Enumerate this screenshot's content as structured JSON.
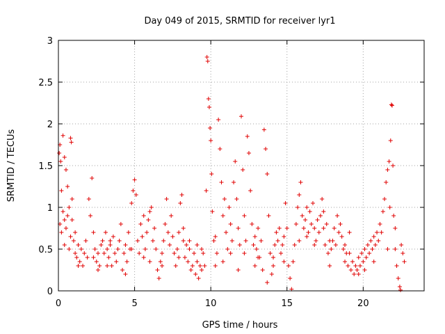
{
  "chart_data": {
    "type": "scatter",
    "title": "Day 049 of 2015, SRMTID for receiver lyr1",
    "xlabel": "GPS time / hours",
    "ylabel": "SRMTID / TECUs",
    "xlim": [
      0,
      24
    ],
    "ylim": [
      0,
      3
    ],
    "xticks": [
      "0",
      "5",
      "10",
      "15",
      "20"
    ],
    "yticks": [
      "0",
      "0.5",
      "1",
      "1.5",
      "2",
      "2.5",
      "3"
    ],
    "grid": true,
    "marker": "plus",
    "color": "#e00000",
    "series": [
      {
        "name": "SRMTID lyr1",
        "points": [
          [
            0.05,
            1.65
          ],
          [
            0.1,
            1.75
          ],
          [
            0.15,
            1.55
          ],
          [
            0.2,
            1.2
          ],
          [
            0.3,
            1.86
          ],
          [
            0.4,
            1.6
          ],
          [
            0.5,
            1.45
          ],
          [
            0.6,
            1.25
          ],
          [
            0.8,
            1.83
          ],
          [
            0.85,
            1.78
          ],
          [
            0.9,
            1.1
          ],
          [
            0.1,
            0.8
          ],
          [
            0.2,
            0.7
          ],
          [
            0.3,
            0.95
          ],
          [
            0.4,
            0.55
          ],
          [
            0.5,
            0.75
          ],
          [
            0.6,
            0.9
          ],
          [
            0.7,
            1.0
          ],
          [
            0.8,
            0.65
          ],
          [
            0.9,
            0.85
          ],
          [
            1.0,
            0.6
          ],
          [
            1.1,
            0.45
          ],
          [
            1.2,
            0.4
          ],
          [
            1.3,
            0.55
          ],
          [
            1.4,
            0.35
          ],
          [
            1.5,
            0.5
          ],
          [
            1.6,
            0.3
          ],
          [
            1.7,
            0.45
          ],
          [
            1.8,
            0.6
          ],
          [
            1.9,
            0.4
          ],
          [
            2.0,
            1.1
          ],
          [
            2.1,
            0.9
          ],
          [
            2.2,
            1.35
          ],
          [
            2.3,
            0.7
          ],
          [
            2.4,
            0.5
          ],
          [
            2.5,
            0.35
          ],
          [
            2.6,
            0.45
          ],
          [
            2.7,
            0.3
          ],
          [
            2.8,
            0.55
          ],
          [
            2.9,
            0.6
          ],
          [
            3.0,
            0.45
          ],
          [
            3.1,
            0.7
          ],
          [
            3.2,
            0.5
          ],
          [
            3.3,
            0.4
          ],
          [
            3.4,
            0.55
          ],
          [
            3.5,
            0.3
          ],
          [
            3.6,
            0.65
          ],
          [
            3.7,
            0.45
          ],
          [
            3.8,
            0.35
          ],
          [
            3.9,
            0.5
          ],
          [
            4.0,
            0.6
          ],
          [
            4.1,
            0.8
          ],
          [
            4.2,
            0.25
          ],
          [
            4.3,
            0.45
          ],
          [
            4.4,
            0.55
          ],
          [
            4.5,
            0.35
          ],
          [
            4.6,
            0.7
          ],
          [
            4.7,
            0.5
          ],
          [
            4.8,
            1.05
          ],
          [
            4.9,
            1.2
          ],
          [
            5.0,
            1.33
          ],
          [
            5.1,
            1.15
          ],
          [
            5.2,
            0.6
          ],
          [
            5.3,
            0.45
          ],
          [
            5.4,
            0.8
          ],
          [
            5.5,
            0.65
          ],
          [
            5.6,
            0.9
          ],
          [
            5.7,
            0.5
          ],
          [
            5.8,
            0.7
          ],
          [
            5.9,
            0.85
          ],
          [
            6.0,
            0.95
          ],
          [
            6.1,
            1.0
          ],
          [
            6.2,
            0.6
          ],
          [
            6.3,
            0.75
          ],
          [
            6.4,
            0.5
          ],
          [
            6.5,
            0.25
          ],
          [
            6.6,
            0.15
          ],
          [
            6.7,
            0.35
          ],
          [
            6.8,
            0.45
          ],
          [
            6.9,
            0.6
          ],
          [
            7.0,
            0.8
          ],
          [
            7.1,
            1.1
          ],
          [
            7.2,
            0.7
          ],
          [
            7.3,
            0.55
          ],
          [
            7.4,
            0.9
          ],
          [
            7.5,
            0.65
          ],
          [
            7.6,
            0.45
          ],
          [
            7.7,
            0.3
          ],
          [
            7.8,
            0.5
          ],
          [
            7.9,
            0.7
          ],
          [
            8.0,
            1.05
          ],
          [
            8.1,
            1.15
          ],
          [
            8.2,
            0.6
          ],
          [
            8.3,
            0.4
          ],
          [
            8.4,
            0.55
          ],
          [
            8.5,
            0.35
          ],
          [
            8.6,
            0.5
          ],
          [
            8.7,
            0.25
          ],
          [
            8.8,
            0.3
          ],
          [
            8.9,
            0.45
          ],
          [
            9.0,
            0.2
          ],
          [
            9.1,
            0.35
          ],
          [
            9.2,
            0.15
          ],
          [
            9.3,
            0.3
          ],
          [
            9.4,
            0.5
          ],
          [
            9.5,
            0.45
          ],
          [
            9.6,
            0.3
          ],
          [
            9.7,
            1.2
          ],
          [
            9.75,
            2.8
          ],
          [
            9.8,
            2.75
          ],
          [
            9.85,
            2.3
          ],
          [
            9.9,
            2.2
          ],
          [
            9.95,
            1.95
          ],
          [
            10.0,
            1.8
          ],
          [
            10.05,
            1.4
          ],
          [
            10.1,
            0.95
          ],
          [
            10.2,
            0.6
          ],
          [
            10.3,
            0.3
          ],
          [
            10.4,
            0.45
          ],
          [
            10.5,
            2.05
          ],
          [
            10.6,
            1.7
          ],
          [
            10.7,
            1.3
          ],
          [
            10.8,
            0.9
          ],
          [
            10.9,
            1.1
          ],
          [
            11.0,
            0.7
          ],
          [
            11.1,
            0.5
          ],
          [
            11.2,
            1.0
          ],
          [
            11.3,
            0.8
          ],
          [
            11.4,
            0.6
          ],
          [
            11.5,
            1.3
          ],
          [
            11.6,
            1.55
          ],
          [
            11.7,
            1.1
          ],
          [
            11.8,
            0.75
          ],
          [
            11.9,
            0.55
          ],
          [
            12.0,
            2.09
          ],
          [
            12.1,
            1.45
          ],
          [
            12.2,
            0.9
          ],
          [
            12.3,
            0.6
          ],
          [
            12.4,
            1.85
          ],
          [
            12.5,
            1.65
          ],
          [
            12.6,
            1.2
          ],
          [
            12.7,
            0.8
          ],
          [
            12.8,
            0.55
          ],
          [
            12.9,
            0.65
          ],
          [
            13.0,
            0.5
          ],
          [
            13.1,
            0.75
          ],
          [
            13.2,
            0.4
          ],
          [
            13.3,
            0.6
          ],
          [
            13.4,
            0.25
          ],
          [
            13.5,
            1.93
          ],
          [
            13.6,
            1.7
          ],
          [
            13.7,
            1.4
          ],
          [
            13.8,
            0.9
          ],
          [
            13.9,
            0.45
          ],
          [
            14.0,
            0.2
          ],
          [
            14.1,
            0.4
          ],
          [
            14.2,
            0.55
          ],
          [
            14.3,
            0.7
          ],
          [
            14.4,
            0.6
          ],
          [
            14.5,
            0.75
          ],
          [
            14.6,
            0.45
          ],
          [
            14.7,
            0.55
          ],
          [
            14.8,
            0.65
          ],
          [
            14.9,
            1.05
          ],
          [
            15.0,
            0.75
          ],
          [
            15.1,
            0.3
          ],
          [
            15.2,
            0.15
          ],
          [
            15.3,
            0.02
          ],
          [
            15.4,
            0.35
          ],
          [
            15.5,
            0.55
          ],
          [
            15.6,
            0.8
          ],
          [
            15.7,
            1.0
          ],
          [
            15.8,
            1.15
          ],
          [
            15.9,
            1.3
          ],
          [
            16.0,
            0.9
          ],
          [
            16.1,
            0.75
          ],
          [
            16.2,
            0.85
          ],
          [
            16.3,
            1.0
          ],
          [
            16.4,
            0.7
          ],
          [
            16.5,
            0.95
          ],
          [
            16.6,
            0.8
          ],
          [
            16.7,
            1.05
          ],
          [
            16.8,
            0.75
          ],
          [
            16.9,
            0.6
          ],
          [
            17.0,
            0.85
          ],
          [
            17.1,
            0.7
          ],
          [
            17.2,
            0.9
          ],
          [
            17.3,
            1.1
          ],
          [
            17.4,
            0.75
          ],
          [
            17.5,
            0.55
          ],
          [
            17.6,
            0.8
          ],
          [
            17.7,
            0.45
          ],
          [
            17.8,
            0.3
          ],
          [
            17.9,
            0.5
          ],
          [
            18.0,
            0.6
          ],
          [
            18.1,
            0.75
          ],
          [
            18.2,
            0.55
          ],
          [
            18.3,
            0.9
          ],
          [
            18.4,
            0.7
          ],
          [
            18.5,
            0.8
          ],
          [
            18.6,
            0.65
          ],
          [
            18.7,
            0.5
          ],
          [
            18.8,
            0.35
          ],
          [
            18.9,
            0.45
          ],
          [
            19.0,
            0.3
          ],
          [
            19.1,
            0.45
          ],
          [
            19.2,
            0.25
          ],
          [
            19.3,
            0.35
          ],
          [
            19.4,
            0.2
          ],
          [
            19.5,
            0.3
          ],
          [
            19.6,
            0.25
          ],
          [
            19.7,
            0.4
          ],
          [
            19.8,
            0.3
          ],
          [
            19.9,
            0.45
          ],
          [
            20.0,
            0.35
          ],
          [
            20.1,
            0.5
          ],
          [
            20.2,
            0.4
          ],
          [
            20.3,
            0.55
          ],
          [
            20.4,
            0.45
          ],
          [
            20.5,
            0.6
          ],
          [
            20.6,
            0.5
          ],
          [
            20.7,
            0.65
          ],
          [
            20.8,
            0.55
          ],
          [
            20.9,
            0.7
          ],
          [
            21.0,
            0.6
          ],
          [
            21.1,
            0.8
          ],
          [
            21.2,
            0.7
          ],
          [
            21.3,
            0.95
          ],
          [
            21.4,
            1.1
          ],
          [
            21.5,
            1.3
          ],
          [
            21.6,
            1.45
          ],
          [
            21.7,
            1.55
          ],
          [
            21.75,
            1.0
          ],
          [
            21.8,
            1.8
          ],
          [
            21.85,
            2.23
          ],
          [
            21.9,
            2.22
          ],
          [
            21.95,
            1.5
          ],
          [
            22.0,
            0.9
          ],
          [
            22.1,
            0.5
          ],
          [
            22.2,
            0.3
          ],
          [
            22.3,
            0.15
          ],
          [
            22.4,
            0.05
          ],
          [
            22.45,
            0.01
          ],
          [
            22.5,
            0.55
          ],
          [
            22.6,
            0.45
          ],
          [
            22.7,
            0.35
          ],
          [
            0.7,
            0.5
          ],
          [
            1.3,
            0.3
          ],
          [
            2.6,
            0.25
          ],
          [
            3.4,
            0.6
          ],
          [
            4.4,
            0.2
          ],
          [
            5.6,
            0.4
          ],
          [
            6.8,
            0.3
          ],
          [
            7.9,
            0.4
          ],
          [
            8.6,
            0.6
          ],
          [
            9.4,
            0.25
          ],
          [
            10.8,
            0.35
          ],
          [
            11.8,
            0.25
          ],
          [
            12.9,
            0.3
          ],
          [
            13.7,
            0.1
          ],
          [
            14.8,
            0.35
          ],
          [
            15.8,
            0.6
          ],
          [
            16.8,
            0.55
          ],
          [
            17.8,
            0.6
          ],
          [
            18.8,
            0.55
          ],
          [
            19.7,
            0.2
          ],
          [
            20.7,
            0.35
          ],
          [
            21.6,
            0.5
          ],
          [
            6.0,
            0.35
          ],
          [
            4.8,
            0.5
          ],
          [
            3.2,
            0.3
          ],
          [
            2.3,
            0.4
          ],
          [
            1.1,
            0.7
          ],
          [
            0.4,
            0.85
          ],
          [
            8.2,
            0.75
          ],
          [
            9.1,
            0.55
          ],
          [
            10.3,
            0.65
          ],
          [
            11.3,
            0.45
          ],
          [
            12.2,
            0.45
          ],
          [
            13.1,
            0.4
          ],
          [
            14.1,
            0.3
          ],
          [
            16.3,
            0.65
          ],
          [
            17.4,
            0.95
          ],
          [
            19.1,
            0.7
          ],
          [
            20.1,
            0.25
          ],
          [
            22.1,
            0.75
          ]
        ]
      }
    ]
  }
}
